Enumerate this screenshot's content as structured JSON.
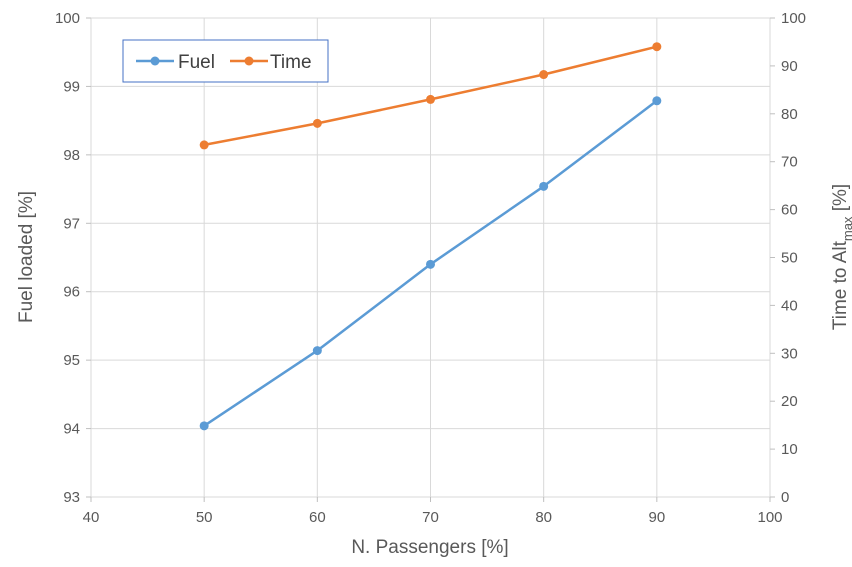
{
  "chart_data": {
    "type": "line",
    "title": "",
    "xlabel": "N. Passengers [%]",
    "ylabel": "Fuel loaded [%]",
    "y2label": {
      "main": "Time to Alt",
      "sub": "max",
      "suffix": " [%]"
    },
    "xlim": [
      40,
      100
    ],
    "xticks": [
      40,
      50,
      60,
      70,
      80,
      90,
      100
    ],
    "ylim": [
      93,
      100
    ],
    "yticks": [
      93,
      94,
      95,
      96,
      97,
      98,
      99,
      100
    ],
    "y2lim": [
      0,
      100
    ],
    "y2ticks": [
      0,
      10,
      20,
      30,
      40,
      50,
      60,
      70,
      80,
      90,
      100
    ],
    "grid": true,
    "legend_position": "top-left",
    "x": [
      50,
      60,
      70,
      80,
      90
    ],
    "series": [
      {
        "name": "Fuel",
        "axis": "left",
        "color": "#5B9BD5",
        "values": [
          94.04,
          95.14,
          96.4,
          97.54,
          98.79
        ]
      },
      {
        "name": "Time",
        "axis": "right",
        "color": "#ED7D31",
        "values": [
          73.5,
          78.0,
          83.0,
          88.2,
          94.0
        ]
      }
    ]
  }
}
